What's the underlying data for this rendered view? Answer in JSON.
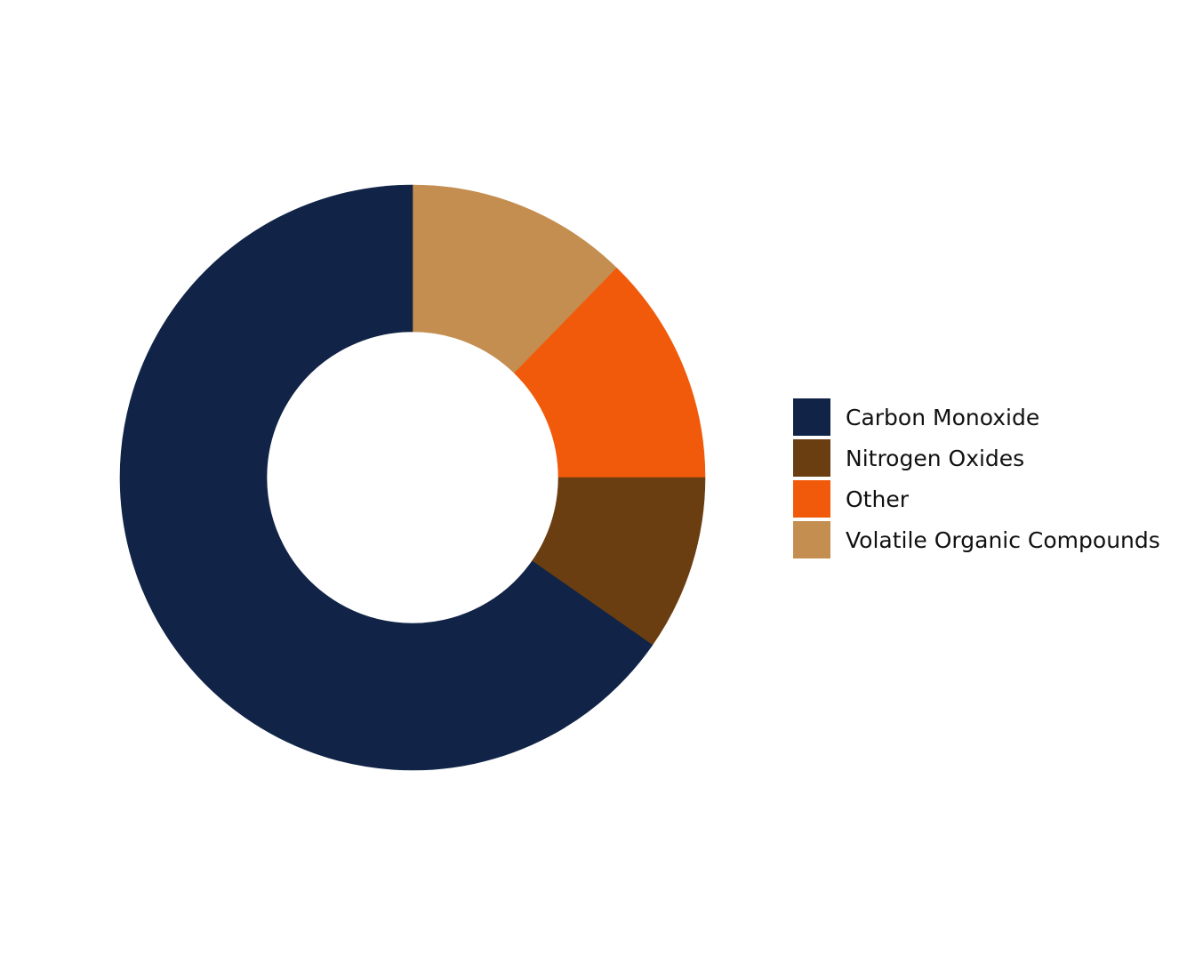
{
  "chart_data": {
    "type": "pie",
    "variant": "donut",
    "title": "",
    "categories": [
      "Carbon Monoxide",
      "Nitrogen Oxides",
      "Other",
      "Volatile Organic Compounds"
    ],
    "values": [
      65.3,
      9.7,
      12.7,
      12.3
    ],
    "unit": "%",
    "colors": [
      "#112447",
      "#6b3e11",
      "#f05a0a",
      "#c48e51"
    ],
    "draw_order": [
      "Volatile Organic Compounds",
      "Other",
      "Nitrogen Oxides",
      "Carbon Monoxide"
    ],
    "start_angle": "12 o'clock",
    "direction": "clockwise",
    "legend_position": "right"
  }
}
